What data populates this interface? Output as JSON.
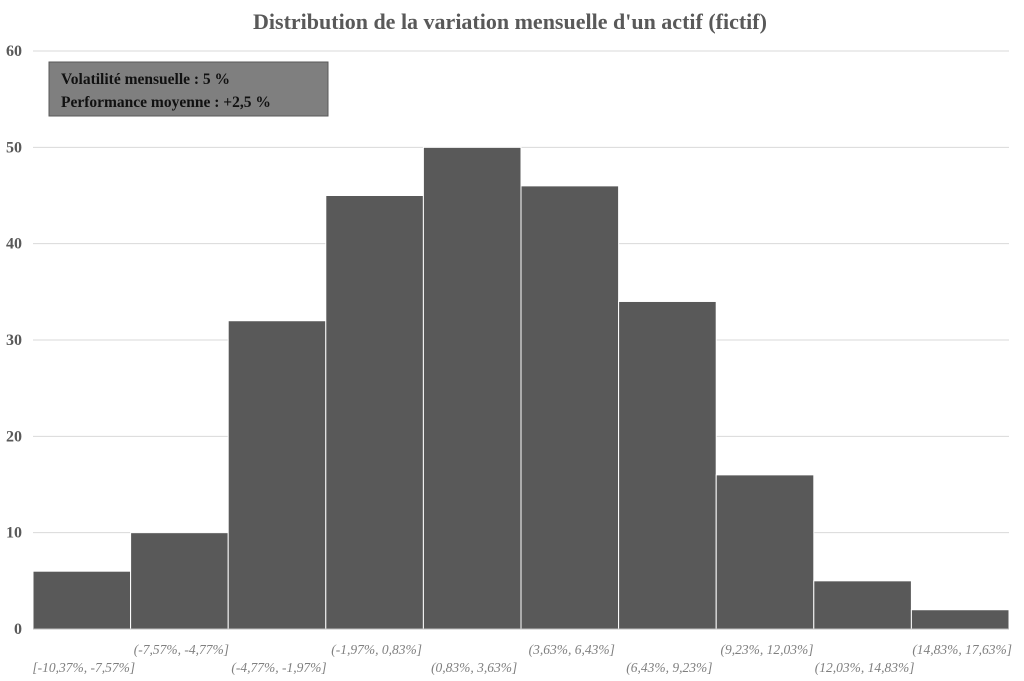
{
  "colors": {
    "bar_fill": "#595959",
    "bar_stroke": "#ffffff",
    "grid": "#d9d9d9",
    "axis": "#bfbfbf",
    "annotation_fill": "#7f7f7f",
    "annotation_stroke": "#595959"
  },
  "annotation": {
    "line1": "Volatilité mensuelle : 5 %",
    "line2": "Performance moyenne : +2,5 %"
  },
  "chart_data": {
    "type": "bar",
    "title": "Distribution de la variation mensuelle d'un actif (fictif)",
    "xlabel": "",
    "ylabel": "",
    "ylim": [
      0,
      60
    ],
    "yticks": [
      0,
      10,
      20,
      30,
      40,
      50,
      60
    ],
    "grid": true,
    "legend": "none",
    "categories": [
      "[-10,37%, -7,57%]",
      "(-7,57%, -4,77%]",
      "(-4,77%, -1,97%]",
      "(-1,97%, 0,83%]",
      "(0,83%, 3,63%]",
      "(3,63%, 6,43%]",
      "(6,43%, 9,23%]",
      "(9,23%, 12,03%]",
      "(12,03%, 14,83%]",
      "(14,83%, 17,63%]"
    ],
    "values": [
      6,
      10,
      32,
      45,
      50,
      46,
      34,
      16,
      5,
      2
    ]
  }
}
